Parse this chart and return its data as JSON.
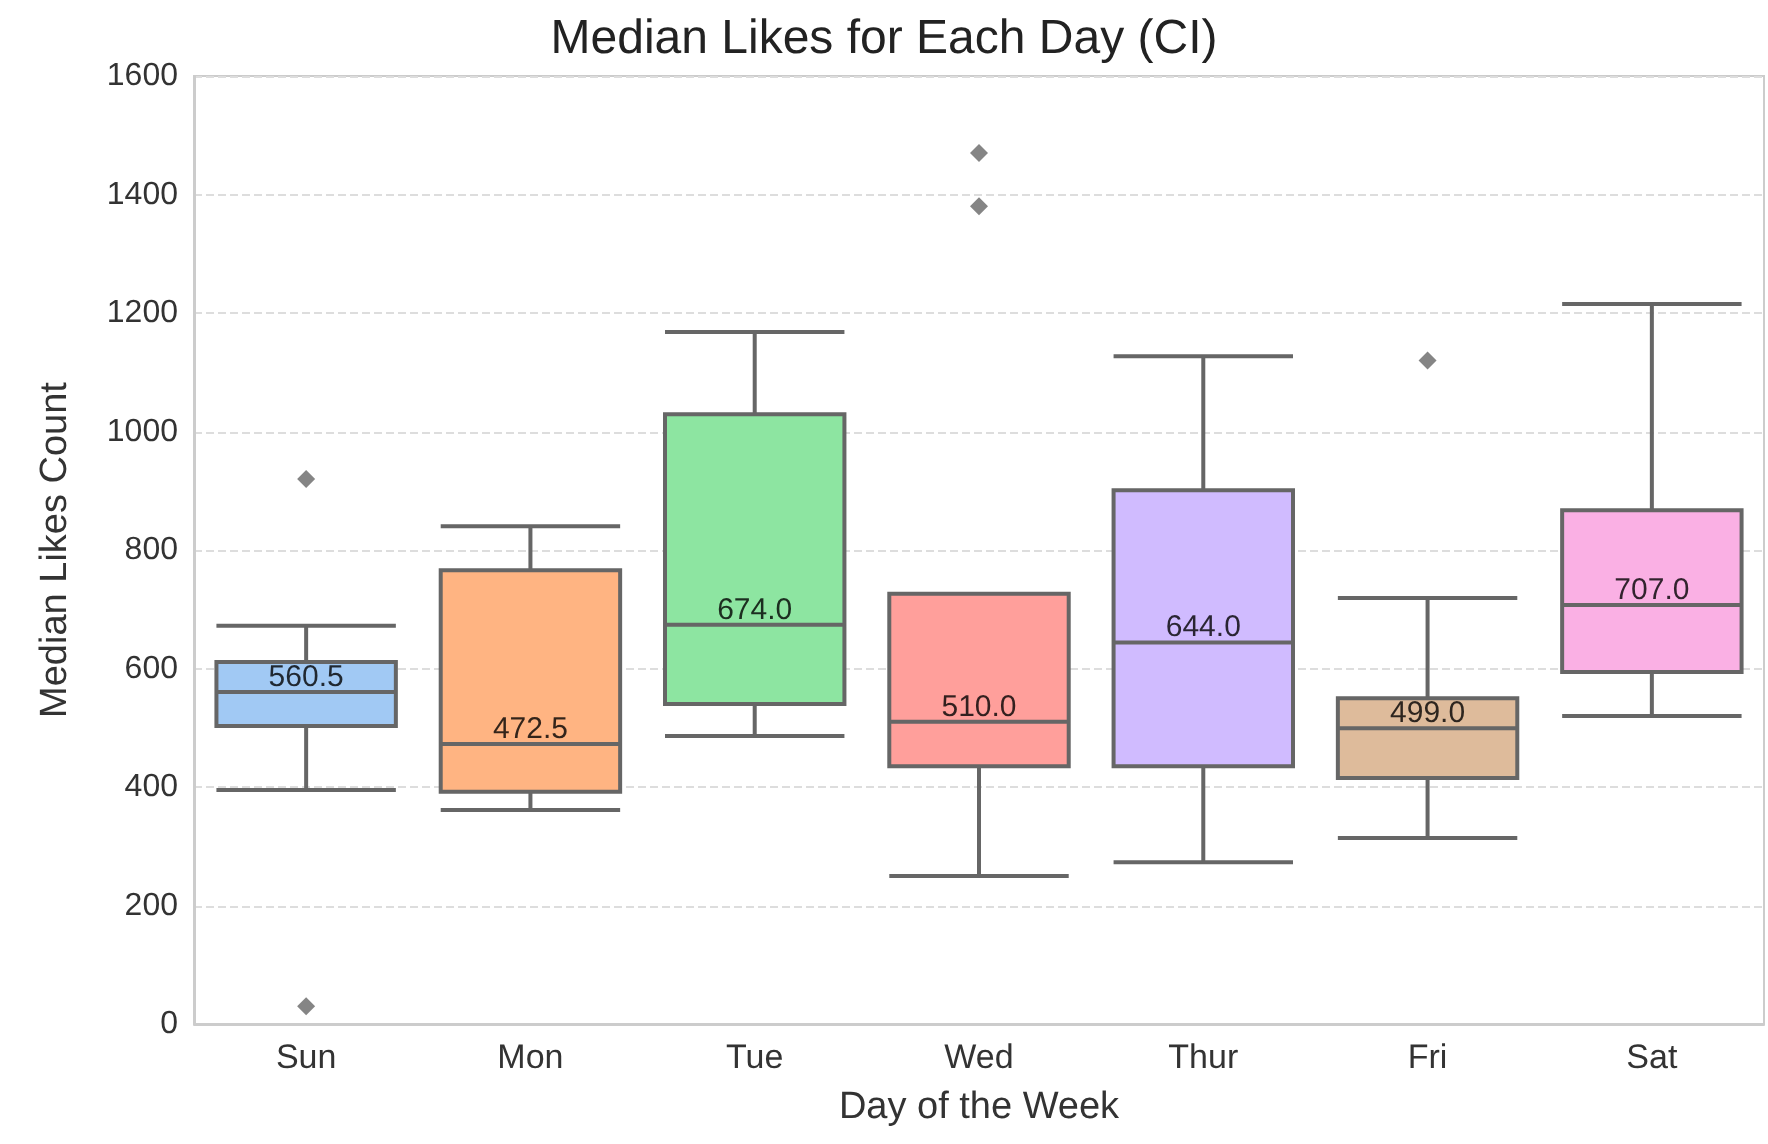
{
  "chart_data": {
    "type": "box",
    "title": "Median Likes for Each Day (CI)",
    "xlabel": "Day of the Week",
    "ylabel": "Median Likes Count",
    "categories": [
      "Sun",
      "Mon",
      "Tue",
      "Wed",
      "Thur",
      "Fri",
      "Sat"
    ],
    "colors": [
      "#a1c9f4",
      "#ffb482",
      "#8de5a1",
      "#ff9f9b",
      "#d0bbff",
      "#debb9b",
      "#fab0e4"
    ],
    "boxes": [
      {
        "low": 395,
        "q1": 503,
        "median": 560.5,
        "q3": 611,
        "high": 672,
        "outliers": [
          920,
          30
        ]
      },
      {
        "low": 361,
        "q1": 392,
        "median": 472.5,
        "q3": 766,
        "high": 840
      },
      {
        "low": 486,
        "q1": 540,
        "median": 674.0,
        "q3": 1029,
        "high": 1168
      },
      {
        "low": 250,
        "q1": 435,
        "median": 510.0,
        "q3": 726,
        "high": 726,
        "outliers": [
          1470,
          1380
        ]
      },
      {
        "low": 273,
        "q1": 435,
        "median": 644.0,
        "q3": 901,
        "high": 1127
      },
      {
        "low": 314,
        "q1": 415,
        "median": 499.0,
        "q3": 550,
        "high": 719,
        "outliers": [
          1120
        ]
      },
      {
        "low": 520,
        "q1": 594,
        "median": 707.0,
        "q3": 867,
        "high": 1215
      }
    ],
    "value_labels": [
      "560.5",
      "472.5",
      "674.0",
      "510.0",
      "644.0",
      "499.0",
      "707.0"
    ],
    "ylim": [
      0,
      1600
    ],
    "yticks": [
      0,
      200,
      400,
      600,
      800,
      1000,
      1200,
      1400,
      1600
    ],
    "grid": "y",
    "marker": "diamond"
  }
}
